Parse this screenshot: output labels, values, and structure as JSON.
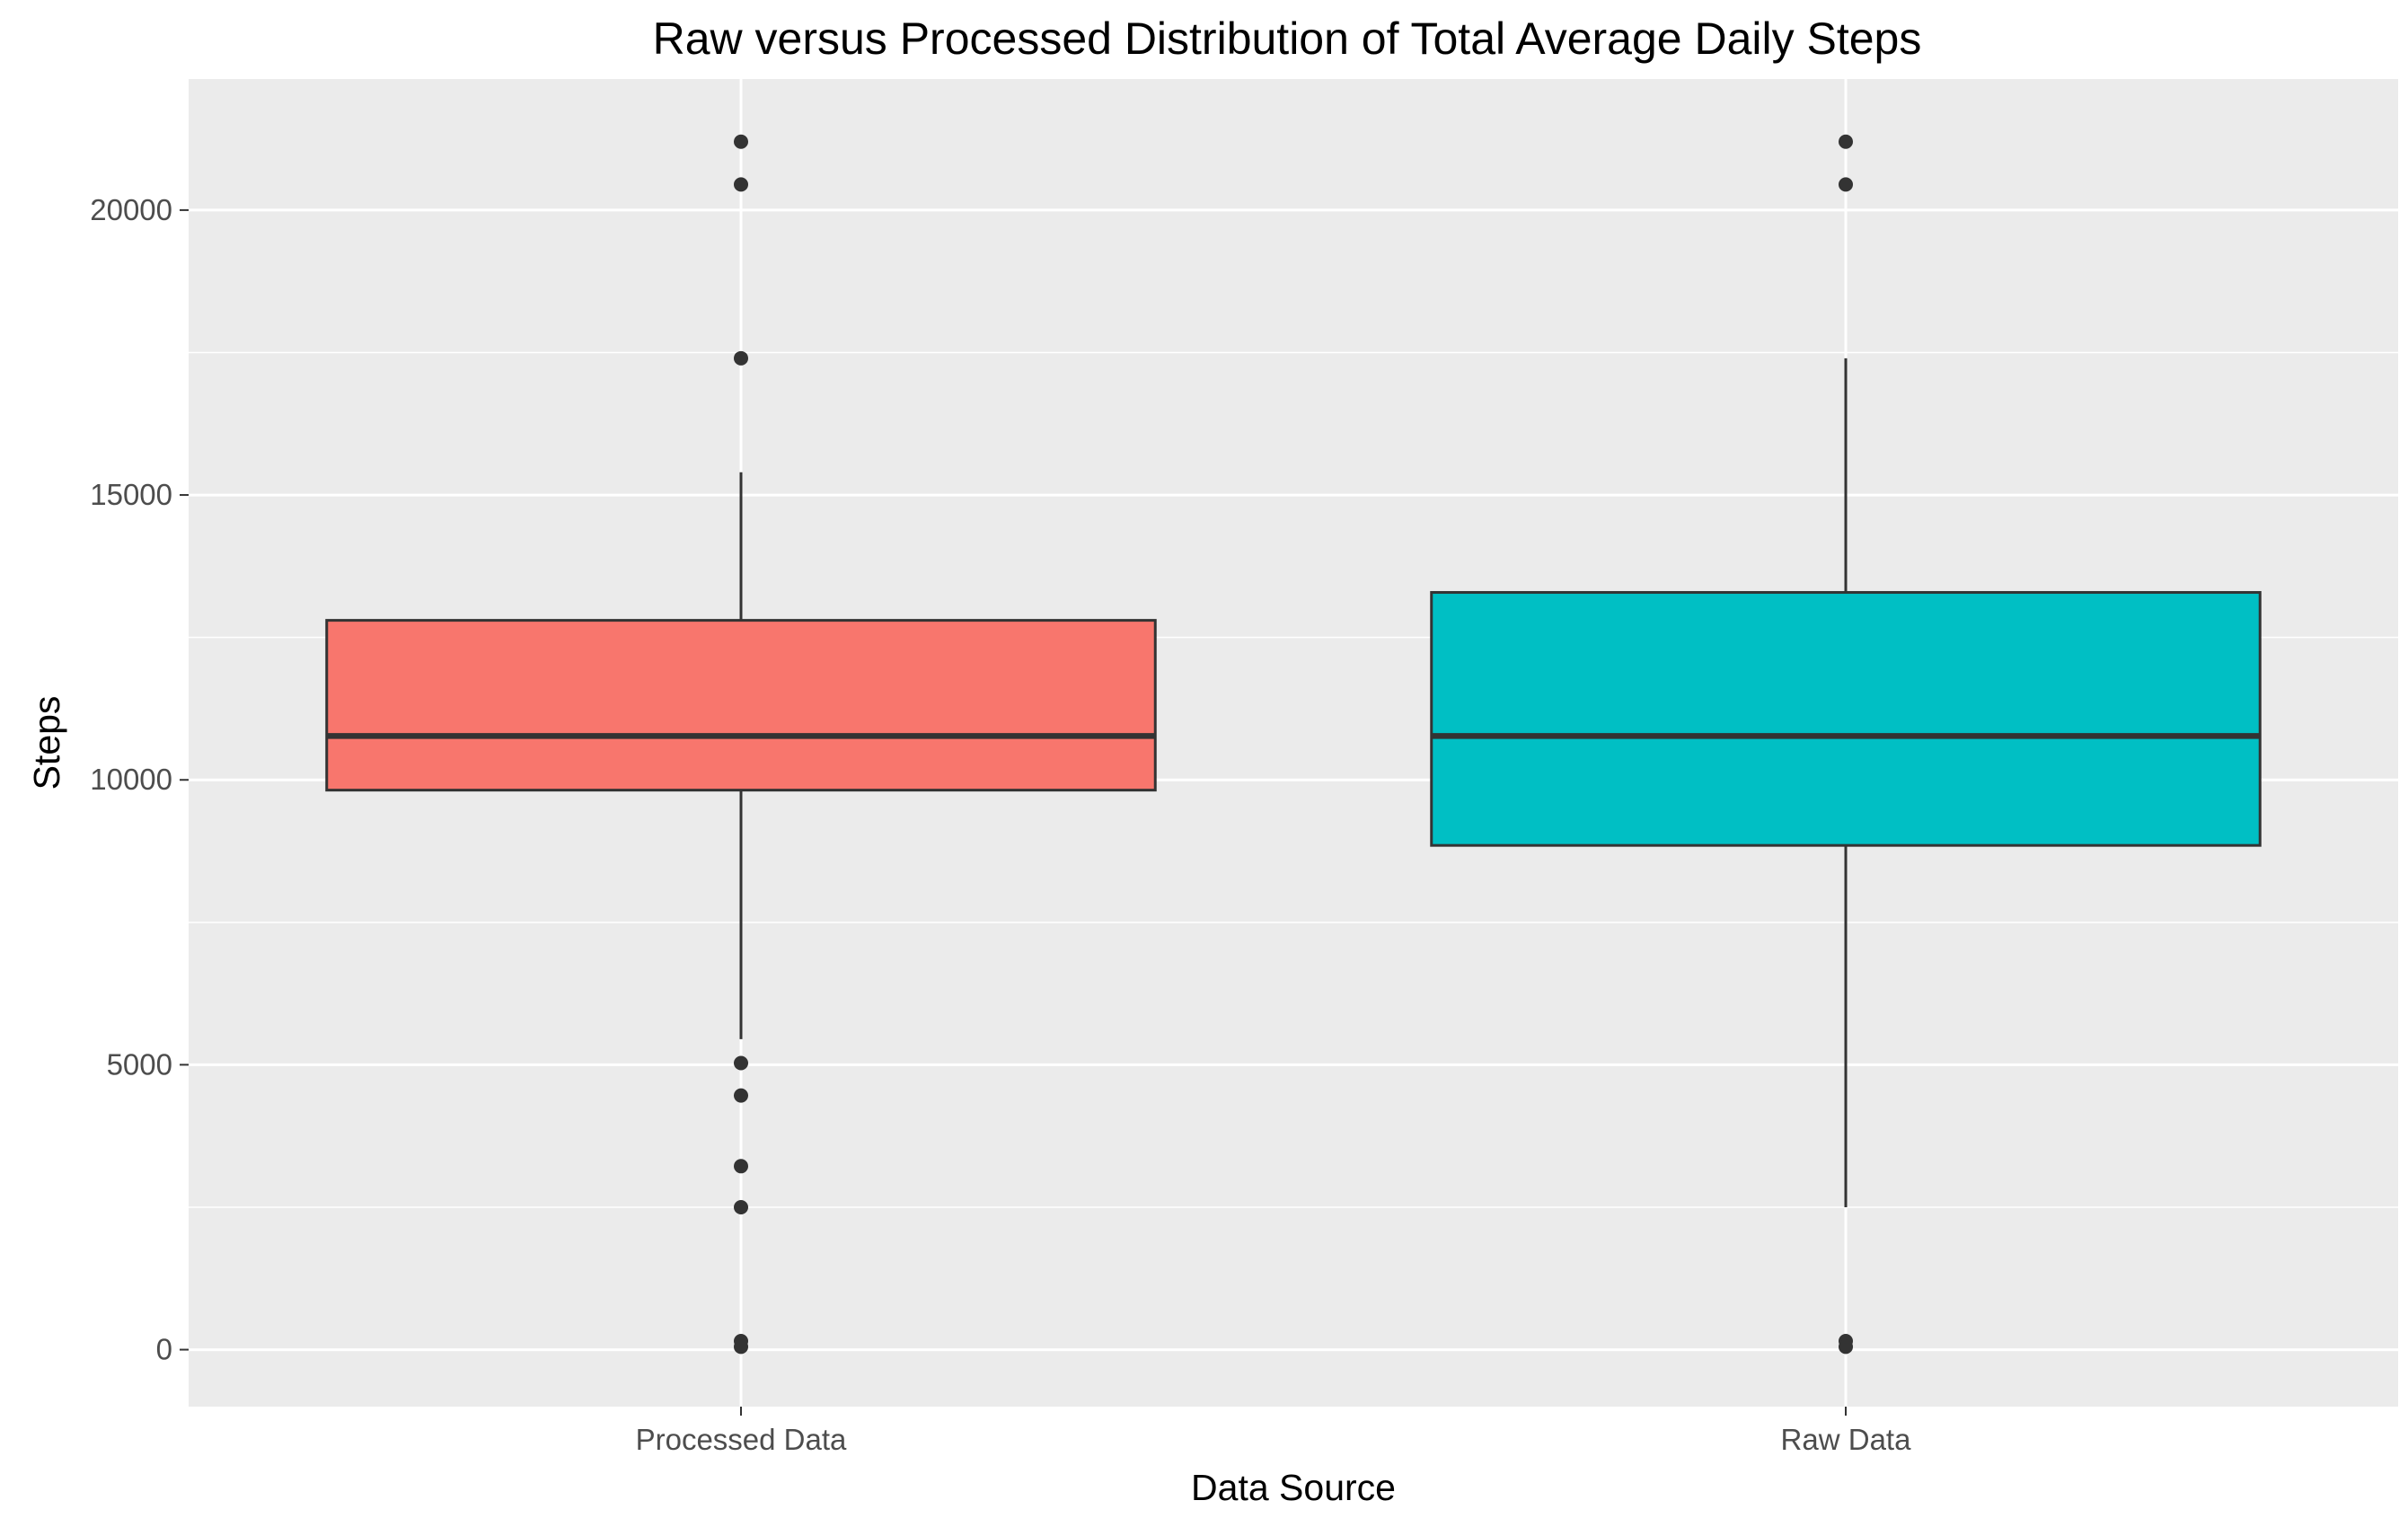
{
  "chart_data": {
    "type": "boxplot",
    "title": "Raw versus Processed Distribution of Total Average Daily Steps",
    "xlabel": "Data Source",
    "ylabel": "Steps",
    "ylim": [
      -1000,
      22300
    ],
    "yticks": [
      0,
      5000,
      10000,
      15000,
      20000
    ],
    "grid": true,
    "legend": "none",
    "panel_background": "#ebebeb",
    "categories": [
      "Processed Data",
      "Raw Data"
    ],
    "series": [
      {
        "category": "Processed Data",
        "color": "#f8766d",
        "q1": 9820,
        "median": 10770,
        "q3": 12800,
        "whisker_low": 5450,
        "whisker_high": 15400,
        "outliers": [
          21200,
          20450,
          17400,
          5030,
          4460,
          3220,
          2500,
          150,
          50
        ]
      },
      {
        "category": "Raw Data",
        "color": "#00bfc4",
        "q1": 8850,
        "median": 10770,
        "q3": 13290,
        "whisker_low": 2500,
        "whisker_high": 17400,
        "outliers": [
          21200,
          20450,
          150,
          50
        ]
      }
    ]
  }
}
